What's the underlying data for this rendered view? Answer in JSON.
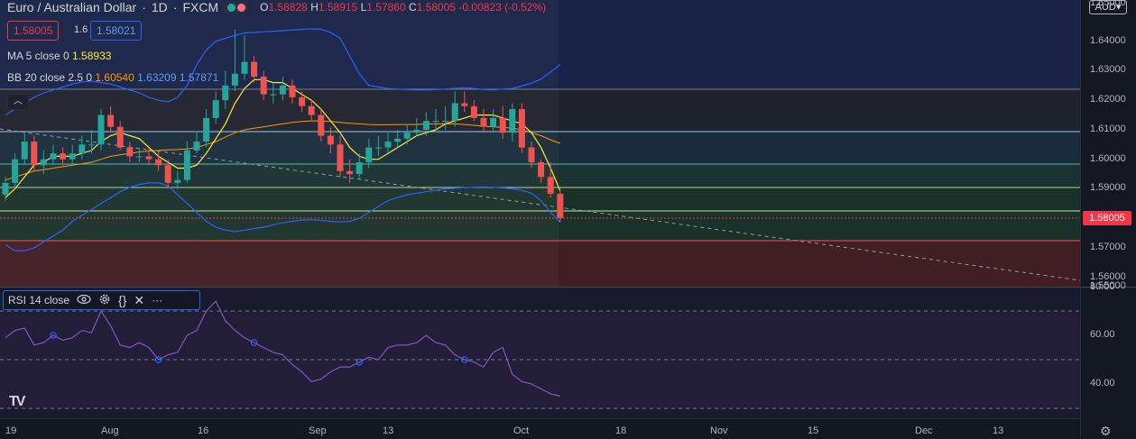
{
  "header": {
    "symbol": "Euro / Australian Dollar",
    "interval": "1D",
    "exchange": "FXCM",
    "open_label": "O",
    "open": "1.58828",
    "high_label": "H",
    "high": "1.58915",
    "low_label": "L",
    "low": "1.57860",
    "close_label": "C",
    "close": "1.58005",
    "change": "-0.00823 (-0.52%)"
  },
  "trade": {
    "bid": "1.58005",
    "spread": "1.6",
    "ask": "1.58021"
  },
  "indicators": {
    "ma": {
      "label": "MA 5 close 0",
      "value": "1.58933"
    },
    "bb": {
      "label": "BB 20 close 2.5 0",
      "basis": "1.60540",
      "upper": "1.63209",
      "lower": "1.57871"
    }
  },
  "rsi": {
    "label": "RSI 14 close"
  },
  "price_axis": {
    "currency": "AUD",
    "labels": [
      "1.65000",
      "1.64000",
      "1.63000",
      "1.62000",
      "1.61000",
      "1.60000",
      "1.59000",
      "1.58000",
      "1.57000",
      "1.56000",
      "1.55000"
    ],
    "current": "1.58005"
  },
  "rsi_axis": {
    "labels": [
      "80.00",
      "60.00",
      "40.00"
    ]
  },
  "time_axis": {
    "labels": [
      "19",
      "Aug",
      "16",
      "Sep",
      "13",
      "Oct",
      "18",
      "Nov",
      "15",
      "Dec",
      "13"
    ]
  },
  "colors": {
    "up": "#26a69a",
    "down": "#ef5350",
    "ma": "#ffeb3b",
    "bb_basis": "#ff9800",
    "bb_band": "#2962ff",
    "rsi": "#7e57c2",
    "current_price": "#f23645"
  },
  "chart_data": [
    {
      "type": "candlestick",
      "title": "Euro / Australian Dollar",
      "x": [
        "Jul 19",
        "Jul 20",
        "Jul 21",
        "Jul 22",
        "Jul 23",
        "Jul 26",
        "Jul 27",
        "Jul 28",
        "Jul 29",
        "Jul 30",
        "Aug 2",
        "Aug 3",
        "Aug 4",
        "Aug 5",
        "Aug 6",
        "Aug 9",
        "Aug 10",
        "Aug 11",
        "Aug 12",
        "Aug 13",
        "Aug 16",
        "Aug 17",
        "Aug 18",
        "Aug 19",
        "Aug 20",
        "Aug 23",
        "Aug 24",
        "Aug 25",
        "Aug 26",
        "Aug 27",
        "Aug 30",
        "Aug 31",
        "Sep 1",
        "Sep 2",
        "Sep 3",
        "Sep 6",
        "Sep 7",
        "Sep 8",
        "Sep 9",
        "Sep 10",
        "Sep 13",
        "Sep 14",
        "Sep 15",
        "Sep 16",
        "Sep 17",
        "Sep 20",
        "Sep 21",
        "Sep 22",
        "Sep 23",
        "Sep 24",
        "Sep 27",
        "Sep 28",
        "Sep 29",
        "Sep 30",
        "Oct 1",
        "Oct 4",
        "Oct 5",
        "Oct 6",
        "Oct 7"
      ],
      "open": [
        1.588,
        1.592,
        1.6,
        1.606,
        1.598,
        1.6,
        1.602,
        1.6,
        1.602,
        1.605,
        1.605,
        1.615,
        1.611,
        1.604,
        1.601,
        1.601,
        1.6,
        1.598,
        1.592,
        1.593,
        1.603,
        1.606,
        1.614,
        1.62,
        1.625,
        1.629,
        1.633,
        1.628,
        1.622,
        1.622,
        1.625,
        1.621,
        1.618,
        1.615,
        1.608,
        1.605,
        1.596,
        1.595,
        1.599,
        1.604,
        1.604,
        1.606,
        1.607,
        1.609,
        1.61,
        1.613,
        1.613,
        1.613,
        1.619,
        1.618,
        1.614,
        1.611,
        1.614,
        1.609,
        1.617,
        1.604,
        1.599,
        1.594,
        1.5883
      ],
      "close": [
        1.592,
        1.6,
        1.606,
        1.598,
        1.6,
        1.602,
        1.6,
        1.602,
        1.605,
        1.605,
        1.615,
        1.611,
        1.604,
        1.601,
        1.601,
        1.6,
        1.598,
        1.592,
        1.593,
        1.603,
        1.606,
        1.614,
        1.62,
        1.625,
        1.629,
        1.633,
        1.628,
        1.622,
        1.622,
        1.625,
        1.621,
        1.618,
        1.615,
        1.608,
        1.605,
        1.596,
        1.595,
        1.599,
        1.604,
        1.604,
        1.606,
        1.607,
        1.609,
        1.61,
        1.613,
        1.613,
        1.613,
        1.619,
        1.618,
        1.614,
        1.611,
        1.614,
        1.609,
        1.617,
        1.604,
        1.599,
        1.594,
        1.5883,
        1.5801
      ],
      "high": [
        1.594,
        1.602,
        1.609,
        1.608,
        1.603,
        1.605,
        1.604,
        1.605,
        1.608,
        1.61,
        1.617,
        1.618,
        1.613,
        1.606,
        1.604,
        1.604,
        1.603,
        1.6,
        1.596,
        1.606,
        1.609,
        1.617,
        1.623,
        1.63,
        1.644,
        1.642,
        1.635,
        1.63,
        1.626,
        1.628,
        1.627,
        1.623,
        1.62,
        1.617,
        1.611,
        1.608,
        1.6,
        1.602,
        1.607,
        1.608,
        1.609,
        1.61,
        1.612,
        1.614,
        1.616,
        1.617,
        1.618,
        1.623,
        1.623,
        1.62,
        1.617,
        1.617,
        1.618,
        1.619,
        1.619,
        1.606,
        1.6,
        1.599,
        1.5892
      ],
      "low": [
        1.586,
        1.59,
        1.598,
        1.596,
        1.595,
        1.598,
        1.598,
        1.598,
        1.6,
        1.602,
        1.603,
        1.609,
        1.603,
        1.599,
        1.599,
        1.598,
        1.596,
        1.59,
        1.59,
        1.592,
        1.602,
        1.604,
        1.612,
        1.617,
        1.623,
        1.627,
        1.626,
        1.62,
        1.619,
        1.62,
        1.619,
        1.616,
        1.613,
        1.606,
        1.602,
        1.594,
        1.592,
        1.593,
        1.597,
        1.601,
        1.602,
        1.604,
        1.605,
        1.608,
        1.608,
        1.61,
        1.61,
        1.611,
        1.616,
        1.613,
        1.609,
        1.609,
        1.607,
        1.606,
        1.602,
        1.597,
        1.592,
        1.587,
        1.5786
      ],
      "ma5": [
        1.587,
        1.59,
        1.594,
        1.598,
        1.599,
        1.601,
        1.601,
        1.601,
        1.602,
        1.603,
        1.606,
        1.608,
        1.609,
        1.608,
        1.607,
        1.604,
        1.601,
        1.599,
        1.597,
        1.597,
        1.598,
        1.602,
        1.607,
        1.612,
        1.619,
        1.624,
        1.627,
        1.627,
        1.626,
        1.626,
        1.624,
        1.622,
        1.62,
        1.617,
        1.613,
        1.609,
        1.604,
        1.601,
        1.6,
        1.6,
        1.602,
        1.604,
        1.606,
        1.608,
        1.609,
        1.61,
        1.612,
        1.613,
        1.614,
        1.615,
        1.615,
        1.615,
        1.614,
        1.613,
        1.612,
        1.609,
        1.604,
        1.597,
        1.5893
      ],
      "bb_basis": [
        1.593,
        1.594,
        1.595,
        1.596,
        1.5965,
        1.597,
        1.5975,
        1.598,
        1.5985,
        1.599,
        1.6,
        1.601,
        1.6015,
        1.602,
        1.6025,
        1.6028,
        1.603,
        1.6032,
        1.6033,
        1.6035,
        1.604,
        1.605,
        1.606,
        1.6075,
        1.609,
        1.61,
        1.6105,
        1.611,
        1.6115,
        1.612,
        1.6125,
        1.6128,
        1.613,
        1.613,
        1.6128,
        1.6125,
        1.6122,
        1.612,
        1.6118,
        1.6117,
        1.6117,
        1.6118,
        1.6118,
        1.6118,
        1.612,
        1.612,
        1.612,
        1.612,
        1.6118,
        1.6115,
        1.6112,
        1.611,
        1.6108,
        1.6105,
        1.61,
        1.609,
        1.608,
        1.6066,
        1.6054
      ],
      "bb_upper": [
        1.615,
        1.617,
        1.619,
        1.621,
        1.6225,
        1.6235,
        1.6245,
        1.6255,
        1.6262,
        1.6265,
        1.626,
        1.6255,
        1.6245,
        1.6235,
        1.6225,
        1.621,
        1.62,
        1.6195,
        1.621,
        1.625,
        1.632,
        1.637,
        1.64,
        1.641,
        1.642,
        1.6428,
        1.643,
        1.6432,
        1.6434,
        1.6436,
        1.6438,
        1.644,
        1.6442,
        1.644,
        1.643,
        1.641,
        1.635,
        1.629,
        1.625,
        1.6245,
        1.624,
        1.6238,
        1.6236,
        1.6235,
        1.6235,
        1.6236,
        1.6238,
        1.624,
        1.6242,
        1.624,
        1.6236,
        1.6235,
        1.6238,
        1.624,
        1.6248,
        1.6258,
        1.6272,
        1.6296,
        1.6321
      ],
      "bb_lower": [
        1.571,
        1.569,
        1.569,
        1.57,
        1.572,
        1.574,
        1.576,
        1.579,
        1.581,
        1.583,
        1.585,
        1.587,
        1.589,
        1.5905,
        1.5915,
        1.592,
        1.592,
        1.591,
        1.588,
        1.585,
        1.582,
        1.579,
        1.577,
        1.576,
        1.5755,
        1.576,
        1.5765,
        1.577,
        1.5778,
        1.5785,
        1.579,
        1.5794,
        1.5795,
        1.5793,
        1.579,
        1.5788,
        1.579,
        1.58,
        1.582,
        1.584,
        1.586,
        1.587,
        1.588,
        1.5885,
        1.589,
        1.5895,
        1.59,
        1.5902,
        1.5904,
        1.5905,
        1.5906,
        1.5905,
        1.5903,
        1.59,
        1.5895,
        1.5885,
        1.586,
        1.582,
        1.5787
      ],
      "ylim": [
        1.55,
        1.65
      ],
      "xlabel": "",
      "ylabel": ""
    },
    {
      "type": "line",
      "title": "RSI 14 close",
      "x_index": [
        0,
        1,
        2,
        3,
        4,
        5,
        6,
        7,
        8,
        9,
        10,
        11,
        12,
        13,
        14,
        15,
        16,
        17,
        18,
        19,
        20,
        21,
        22,
        23,
        24,
        25,
        26,
        27,
        28,
        29,
        30,
        31,
        32,
        33,
        34,
        35,
        36,
        37,
        38,
        39,
        40,
        41,
        42,
        43,
        44,
        45,
        46,
        47,
        48,
        49,
        50,
        51,
        52,
        53,
        54,
        55,
        56,
        57,
        58
      ],
      "values": [
        59,
        62,
        63,
        56,
        57,
        60,
        58,
        59,
        62,
        61,
        70,
        64,
        56,
        55,
        57,
        55,
        50,
        52,
        53,
        60,
        62,
        70,
        74,
        66,
        62,
        59,
        57,
        55,
        53,
        52,
        48,
        45,
        41,
        42,
        45,
        47,
        47,
        49,
        51,
        50,
        55,
        56,
        56,
        57,
        60,
        57,
        56,
        52,
        50,
        49,
        47,
        53,
        55,
        44,
        41,
        40,
        38,
        36,
        35
      ],
      "ylim": [
        20,
        85
      ],
      "levels": [
        70,
        50,
        30
      ]
    }
  ]
}
